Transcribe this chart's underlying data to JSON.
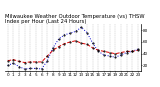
{
  "title": "Milwaukee Weather Outdoor Temperature (vs) THSW Index per Hour (Last 24 Hours)",
  "hours": [
    0,
    1,
    2,
    3,
    4,
    5,
    6,
    7,
    8,
    9,
    10,
    11,
    12,
    13,
    14,
    15,
    16,
    17,
    18,
    19,
    20,
    21,
    22,
    23
  ],
  "temp": [
    28,
    30,
    27,
    25,
    26,
    26,
    26,
    36,
    46,
    52,
    57,
    60,
    62,
    58,
    56,
    50,
    46,
    44,
    42,
    40,
    42,
    44,
    44,
    46
  ],
  "thsw": [
    20,
    24,
    18,
    14,
    15,
    15,
    14,
    28,
    50,
    65,
    72,
    75,
    78,
    85,
    76,
    58,
    44,
    38,
    36,
    34,
    38,
    42,
    44,
    48
  ],
  "temp_color": "#dd0000",
  "thsw_color": "#0000cc",
  "dot_color": "#000000",
  "bg_color": "#ffffff",
  "grid_color": "#aaaaaa",
  "ylim": [
    10,
    90
  ],
  "ytick_values": [
    20,
    40,
    60,
    80
  ],
  "ytick_labels": [
    "20",
    "40",
    "60",
    "80"
  ],
  "title_fontsize": 3.8,
  "tick_fontsize": 3.0,
  "line_width": 0.7,
  "marker_size": 1.0
}
